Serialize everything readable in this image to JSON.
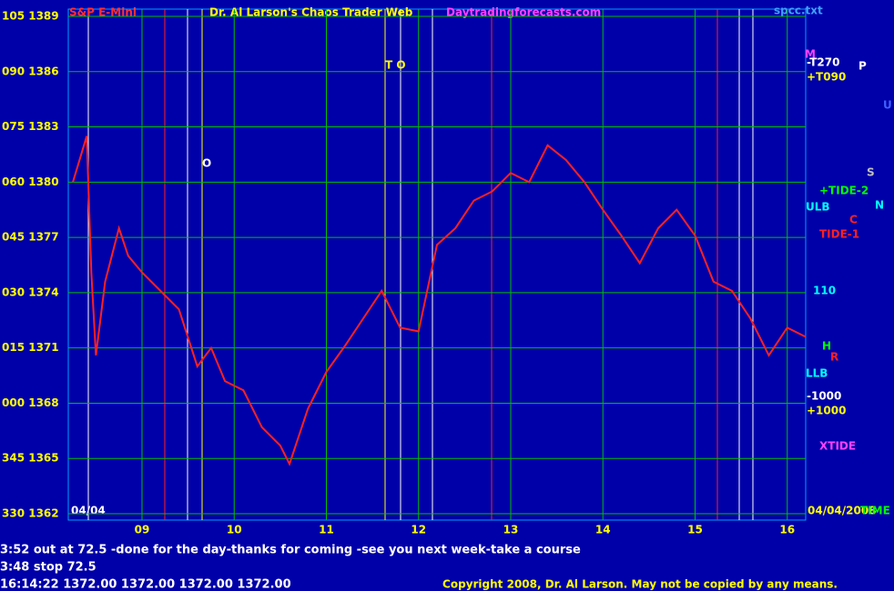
{
  "chart_data": {
    "type": "line",
    "title": "Dr. Al Larson's Chaos Trader Web",
    "subtitle": "S&P E-Mini",
    "x": [
      8.25,
      8.4,
      8.45,
      8.5,
      8.6,
      8.75,
      8.85,
      9.0,
      9.2,
      9.4,
      9.6,
      9.75,
      9.9,
      10.1,
      10.3,
      10.5,
      10.6,
      10.8,
      11.0,
      11.2,
      11.4,
      11.6,
      11.8,
      12.0,
      12.2,
      12.4,
      12.6,
      12.8,
      13.0,
      13.2,
      13.4,
      13.6,
      13.8,
      14.0,
      14.2,
      14.4,
      14.6,
      14.8,
      15.0,
      15.2,
      15.4,
      15.6,
      15.8,
      16.0,
      16.2
    ],
    "values": [
      1380.0,
      1382.5,
      1375.1,
      1370.6,
      1374.6,
      1377.5,
      1376.0,
      1375.1,
      1374.1,
      1373.1,
      1370.0,
      1371.0,
      1369.2,
      1368.7,
      1366.7,
      1365.7,
      1364.7,
      1367.7,
      1369.7,
      1371.1,
      1372.6,
      1374.1,
      1372.1,
      1371.9,
      1376.6,
      1377.5,
      1379.0,
      1379.5,
      1380.5,
      1380.0,
      1382.0,
      1381.2,
      1380.0,
      1378.5,
      1377.1,
      1375.6,
      1377.5,
      1378.5,
      1377.1,
      1374.6,
      1374.1,
      1372.6,
      1370.6,
      1372.1,
      1371.6
    ],
    "color": "#ff2020",
    "xlim": [
      8.2,
      16.2
    ],
    "xticks": [
      {
        "value": 9,
        "label": "09"
      },
      10,
      11,
      12,
      13,
      14,
      15,
      16
    ],
    "ylim": [
      1362,
      1389
    ],
    "yticks": [
      {
        "value": 1389,
        "label": "105 1389"
      },
      {
        "value": 1386,
        "label": "090 1386"
      },
      {
        "value": 1383,
        "label": "075 1383"
      },
      {
        "value": 1380,
        "label": "060 1380"
      },
      {
        "value": 1377,
        "label": "045 1377"
      },
      {
        "value": 1374,
        "label": "030 1374"
      },
      {
        "value": 1371,
        "label": "015 1371"
      },
      {
        "value": 1368,
        "label": "000 1368"
      },
      {
        "value": 1365,
        "label": "345 1365"
      },
      {
        "value": 1362,
        "label": "330 1362"
      }
    ],
    "grid": true
  },
  "header": {
    "site": "Daytradingforecasts.com",
    "file": "spcc.txt"
  },
  "annotations": [
    "04/04",
    "P",
    "U",
    "S",
    "N",
    "C",
    "M",
    "-T270",
    "+T090",
    "+TIDE-2",
    "TIDE-1",
    "ULB",
    "110",
    "H",
    "R",
    "LLB",
    "-1000",
    "+1000",
    "XTIDE",
    "04/04/2008",
    "TIME",
    "O",
    "T O"
  ],
  "footer": {
    "lines": [
      "3:52 out at 72.5 -done for the day-thanks for coming -see you next week-take a course",
      "3:48 stop 72.5",
      "16:14:22  1372.00  1372.00  1372.00  1372.00"
    ],
    "copyright": "Copyright 2008, Dr. Al Larson. May not be copied by any means."
  }
}
